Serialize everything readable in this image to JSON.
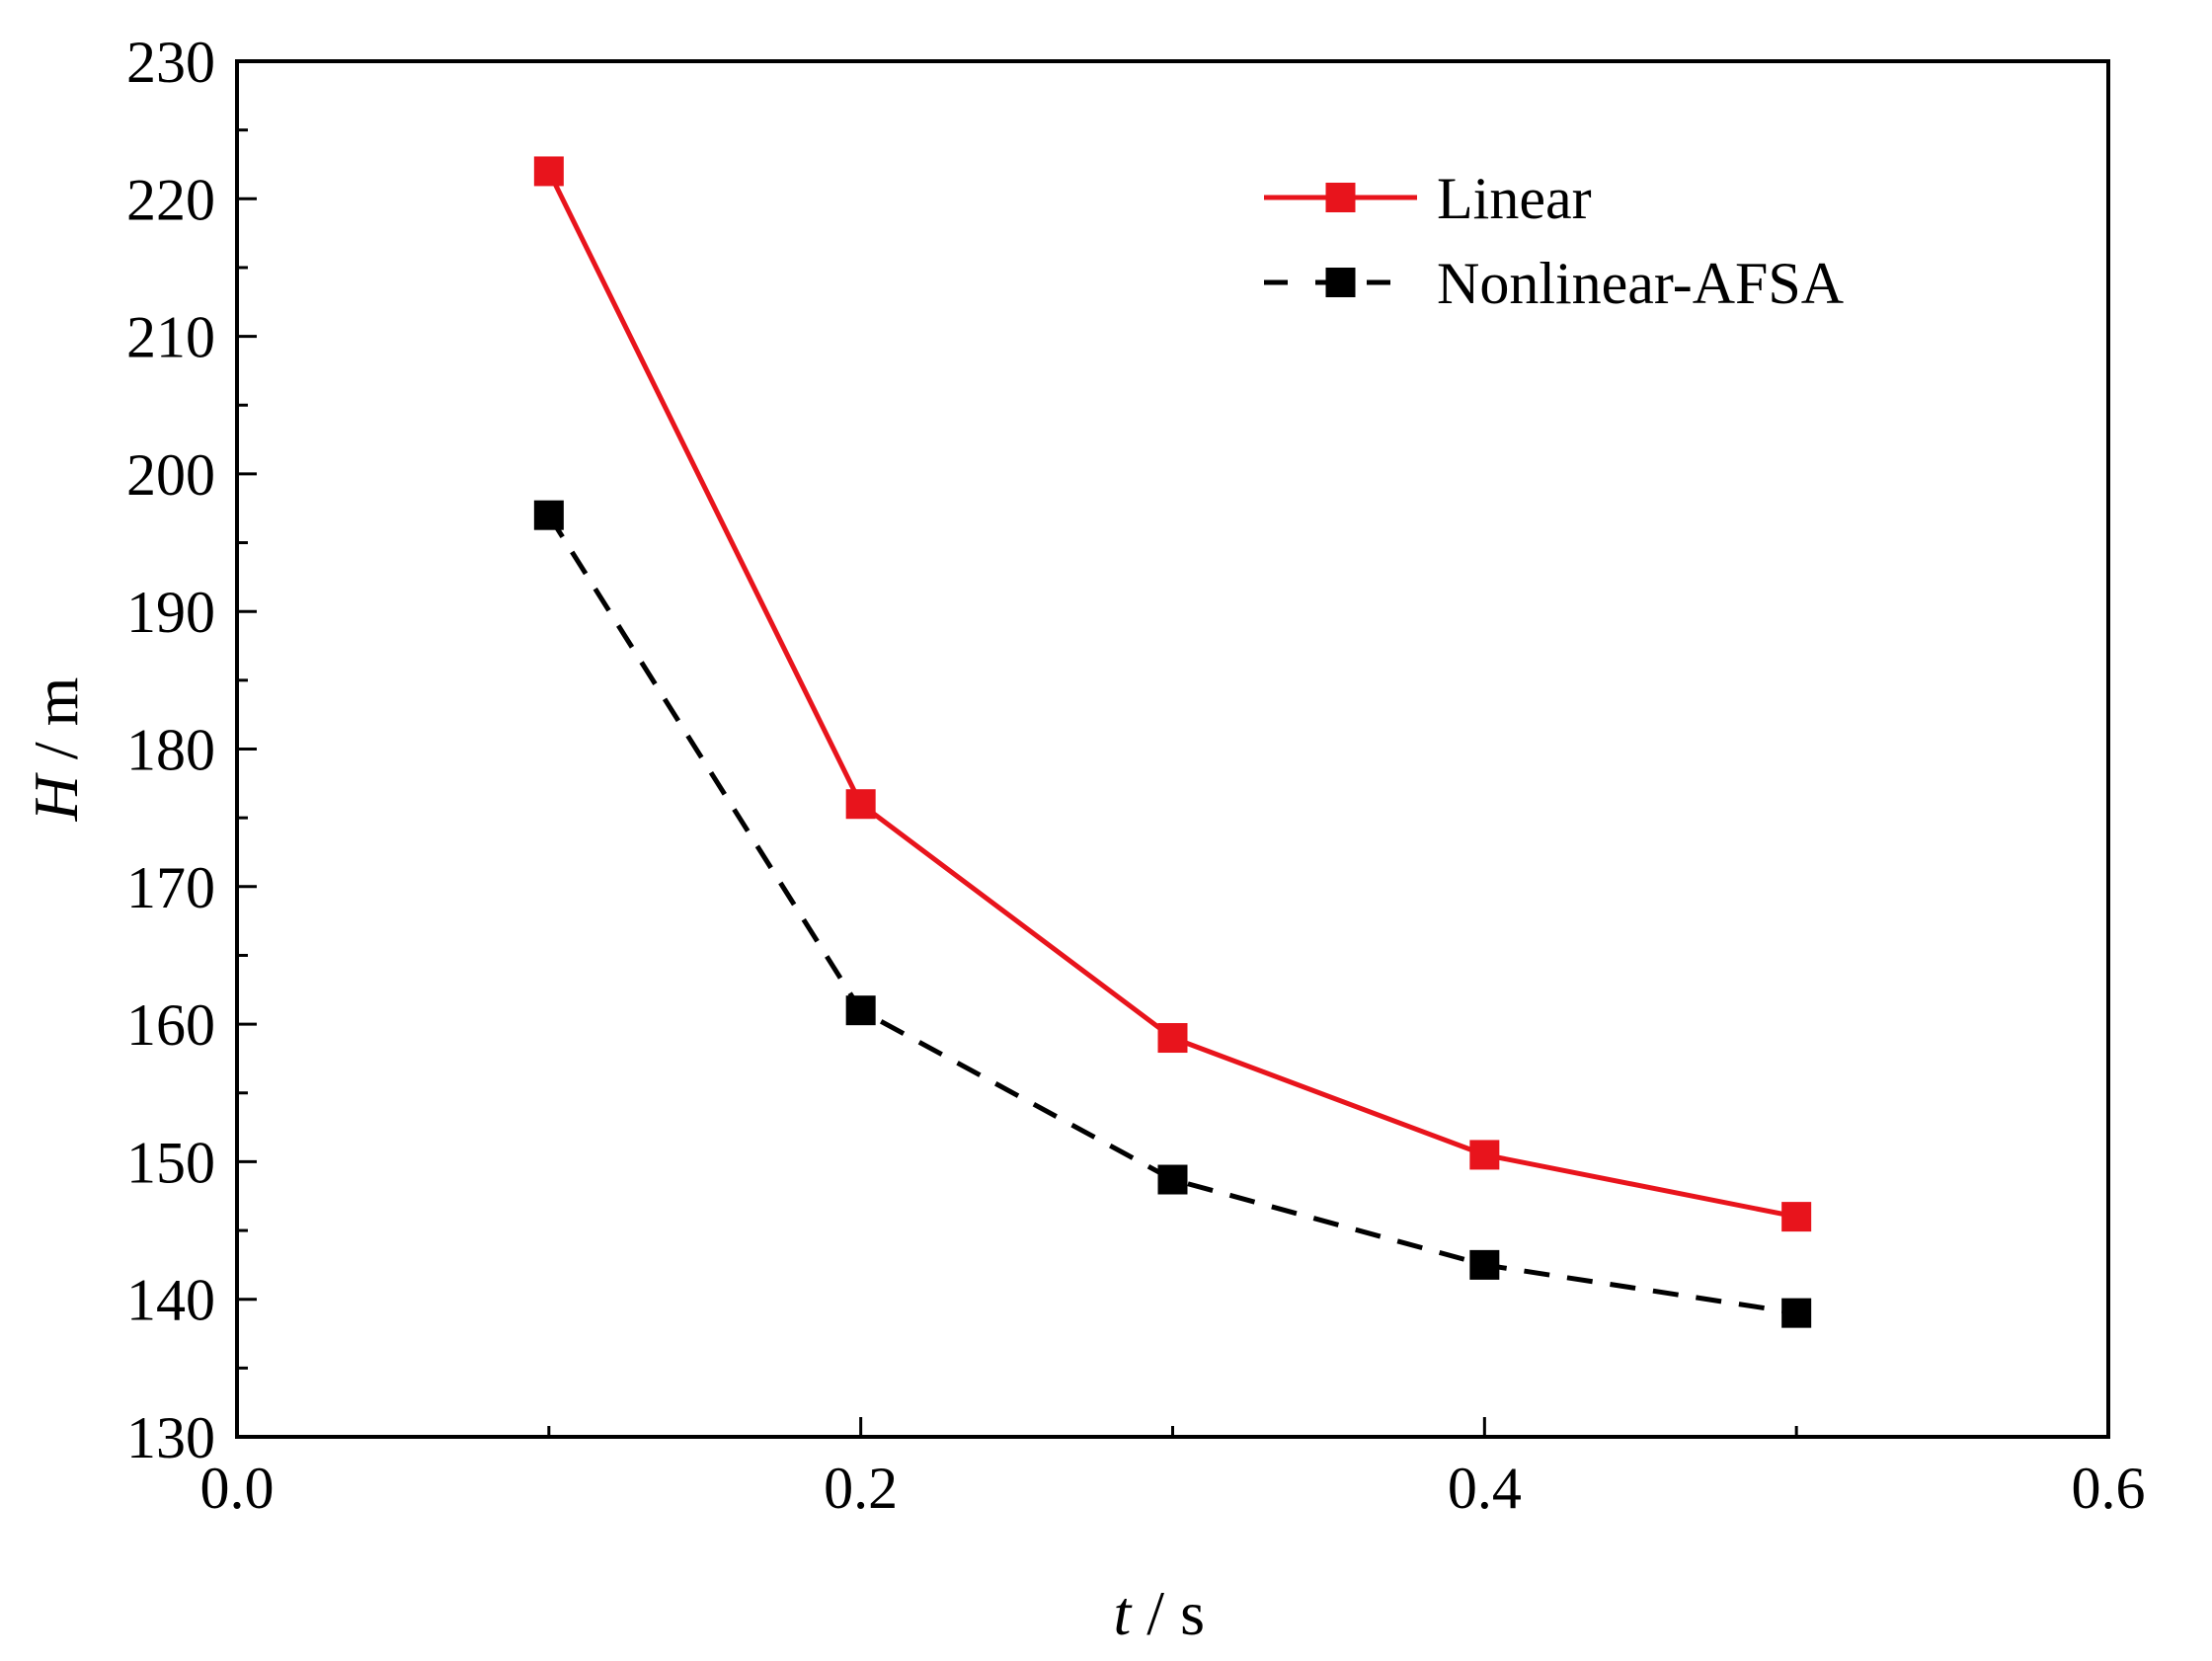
{
  "chart_data": {
    "type": "line",
    "title": "",
    "xlabel": {
      "variable": "t",
      "unit": "/ s"
    },
    "ylabel": {
      "variable": "H",
      "unit": "/ m"
    },
    "xlim": [
      0.0,
      0.6
    ],
    "ylim": [
      130,
      230
    ],
    "x_ticks": [
      0.0,
      0.2,
      0.4,
      0.6
    ],
    "x_tick_labels": [
      "0.0",
      "0.2",
      "0.4",
      "0.6"
    ],
    "x_minor_step": 0.1,
    "y_ticks": [
      130,
      140,
      150,
      160,
      170,
      180,
      190,
      200,
      210,
      220,
      230
    ],
    "y_tick_labels": [
      "130",
      "140",
      "150",
      "160",
      "170",
      "180",
      "190",
      "200",
      "210",
      "220",
      "230"
    ],
    "y_minor_step": 5,
    "grid": false,
    "legend_position": "top-right",
    "x": [
      0.1,
      0.2,
      0.3,
      0.4,
      0.5
    ],
    "series": [
      {
        "name": "Linear",
        "values": [
          222,
          176,
          159,
          150.5,
          146
        ],
        "color": "#e8141c",
        "line_style": "solid",
        "marker": "square"
      },
      {
        "name": "Nonlinear-AFSA",
        "values": [
          197,
          161,
          148.7,
          142.5,
          139
        ],
        "color": "#000000",
        "line_style": "dashed",
        "marker": "square"
      }
    ]
  }
}
